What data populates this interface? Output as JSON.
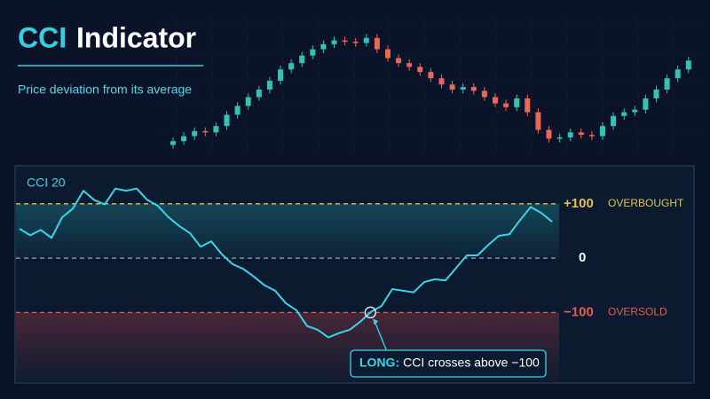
{
  "chart_data": [
    {
      "type": "candlestick",
      "title_accent": "CCI",
      "title": "Indicator",
      "subtitle": "Price deviation from its average",
      "up_color": "#2ec4b6",
      "down_color": "#e8695a",
      "ylim": [
        0,
        100
      ],
      "open": [
        6,
        9,
        13,
        17,
        16,
        21,
        30,
        37,
        44,
        50,
        57,
        66,
        71,
        77,
        82,
        86,
        89,
        88,
        87,
        91,
        82,
        75,
        71,
        68,
        64,
        59,
        54,
        50,
        52,
        49,
        44,
        39,
        36,
        43,
        32,
        18,
        11,
        12,
        16,
        14,
        13,
        21,
        29,
        32,
        34,
        43,
        50,
        59,
        66
      ],
      "high": [
        12,
        16,
        20,
        20,
        24,
        33,
        40,
        47,
        53,
        60,
        69,
        74,
        80,
        85,
        89,
        92,
        92,
        91,
        94,
        94,
        85,
        78,
        74,
        71,
        67,
        62,
        57,
        55,
        55,
        52,
        47,
        42,
        46,
        46,
        35,
        21,
        15,
        19,
        19,
        17,
        24,
        32,
        35,
        37,
        46,
        53,
        62,
        69,
        76
      ],
      "low": [
        3,
        6,
        10,
        13,
        13,
        18,
        27,
        34,
        41,
        47,
        54,
        63,
        68,
        74,
        79,
        83,
        85,
        84,
        84,
        79,
        72,
        68,
        65,
        61,
        56,
        51,
        47,
        47,
        46,
        41,
        36,
        33,
        33,
        29,
        15,
        8,
        8,
        9,
        11,
        10,
        10,
        18,
        26,
        29,
        31,
        40,
        47,
        56,
        63
      ],
      "close": [
        9,
        13,
        17,
        16,
        21,
        30,
        37,
        44,
        50,
        57,
        66,
        71,
        77,
        82,
        86,
        89,
        88,
        87,
        91,
        82,
        75,
        71,
        68,
        64,
        59,
        54,
        50,
        52,
        49,
        44,
        39,
        36,
        43,
        32,
        18,
        11,
        12,
        16,
        14,
        13,
        21,
        29,
        32,
        34,
        43,
        50,
        59,
        66,
        73
      ]
    },
    {
      "type": "line",
      "series": [
        {
          "name": "CCI 20",
          "color": "#3ad4ea",
          "values": [
            54,
            42,
            52,
            37,
            75,
            91,
            124,
            107,
            99,
            128,
            124,
            128,
            107,
            96,
            75,
            59,
            46,
            21,
            31,
            7,
            -11,
            -20,
            -34,
            -50,
            -60,
            -83,
            -96,
            -125,
            -132,
            -146,
            -138,
            -132,
            -117,
            -99,
            -88,
            -57,
            -60,
            -63,
            -44,
            -39,
            -41,
            -18,
            5,
            5,
            24,
            41,
            44,
            70,
            94,
            83,
            67
          ]
        }
      ],
      "ylim": [
        -230,
        165
      ],
      "yticks": [
        {
          "value": 100,
          "label": "+100"
        },
        0,
        {
          "value": -100,
          "label": "−100"
        }
      ],
      "level_colors": [
        "#e0c055",
        "#9aa6b8",
        "#de5f55"
      ],
      "overbought_label": "OVERBOUGHT",
      "oversold_label": "OVERSOLD",
      "annotation": {
        "label": "LONG:",
        "text": "CCI crosses above −100"
      }
    }
  ]
}
